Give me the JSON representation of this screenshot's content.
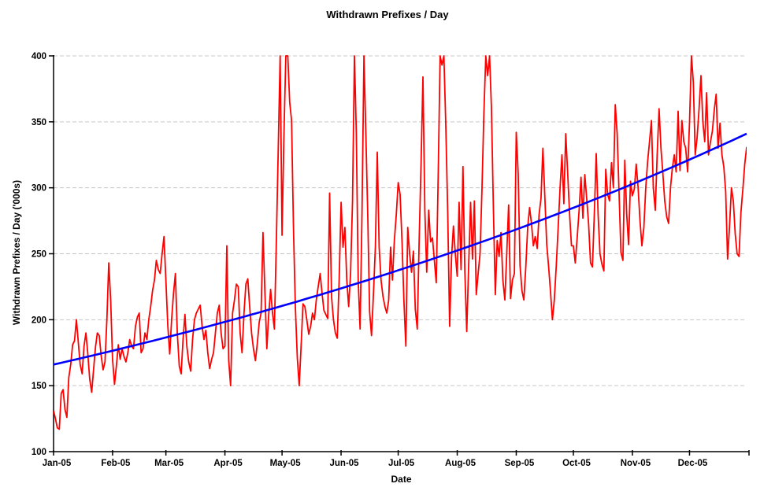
{
  "title": "Withdrawn Prefixes / Day",
  "chart_data": {
    "type": "line",
    "title": "Withdrawn Prefixes / Day",
    "xlabel": "Date",
    "ylabel": "Withdrawn Prefixes / Day ('000s)",
    "ylim": [
      100,
      400
    ],
    "clip_max": 400,
    "grid": "horizontal-dashed",
    "legend": "none",
    "y_ticks": [
      100,
      150,
      200,
      250,
      300,
      350,
      400
    ],
    "y_gridlines": [
      150,
      200,
      250,
      300,
      350,
      400
    ],
    "x_tick_labels": [
      "Jan-05",
      "Feb-05",
      "Mar-05",
      "Apr-05",
      "May-05",
      "Jun-05",
      "Jul-05",
      "Aug-05",
      "Sep-05",
      "Oct-05",
      "Nov-05",
      "Dec-05"
    ],
    "x_tick_days": [
      0,
      31,
      59,
      90,
      120,
      151,
      181,
      212,
      243,
      273,
      304,
      334
    ],
    "x_end_tick_day": 365,
    "x_unit": "day-of-2005",
    "series": [
      {
        "name": "withdrawn-prefixes-daily",
        "color": "#ff0000",
        "values": [
          131,
          125,
          118,
          117,
          144,
          147,
          132,
          126,
          156,
          166,
          181,
          184,
          200,
          183,
          166,
          159,
          180,
          190,
          174,
          155,
          145,
          162,
          179,
          190,
          188,
          173,
          162,
          168,
          200,
          243,
          215,
          170,
          151,
          165,
          181,
          170,
          178,
          172,
          168,
          175,
          185,
          180,
          178,
          195,
          202,
          205,
          175,
          178,
          190,
          185,
          200,
          210,
          222,
          230,
          245,
          238,
          235,
          250,
          263,
          230,
          195,
          174,
          200,
          220,
          235,
          190,
          165,
          159,
          185,
          204,
          180,
          168,
          161,
          185,
          200,
          205,
          208,
          211,
          195,
          185,
          192,
          175,
          163,
          170,
          175,
          190,
          205,
          211,
          190,
          178,
          180,
          256,
          169,
          150,
          205,
          215,
          227,
          225,
          190,
          175,
          205,
          227,
          231,
          210,
          190,
          178,
          169,
          182,
          198,
          205,
          266,
          220,
          178,
          204,
          223,
          205,
          193,
          260,
          330,
          400,
          264,
          340,
          400,
          400,
          365,
          351,
          270,
          210,
          171,
          150,
          180,
          212,
          210,
          200,
          189,
          195,
          205,
          200,
          215,
          225,
          235,
          220,
          207,
          204,
          201,
          296,
          217,
          200,
          190,
          186,
          230,
          289,
          255,
          270,
          230,
          210,
          235,
          290,
          400,
          342,
          230,
          193,
          280,
          400,
          341,
          280,
          206,
          188,
          220,
          255,
          327,
          255,
          230,
          218,
          210,
          205,
          215,
          255,
          230,
          260,
          280,
          304,
          295,
          260,
          215,
          180,
          270,
          250,
          236,
          252,
          208,
          193,
          260,
          318,
          384,
          283,
          236,
          283,
          259,
          262,
          245,
          228,
          310,
          400,
          393,
          400,
          348,
          283,
          195,
          247,
          271,
          250,
          233,
          289,
          238,
          316,
          237,
          191,
          240,
          289,
          246,
          290,
          219,
          235,
          250,
          300,
          357,
          400,
          385,
          400,
          360,
          283,
          219,
          260,
          248,
          266,
          230,
          215,
          250,
          287,
          216,
          230,
          235,
          342,
          311,
          241,
          222,
          215,
          240,
          270,
          285,
          273,
          256,
          263,
          254,
          280,
          292,
          330,
          294,
          257,
          240,
          221,
          200,
          215,
          240,
          270,
          300,
          325,
          288,
          341,
          312,
          280,
          256,
          256,
          243,
          262,
          283,
          308,
          277,
          310,
          292,
          273,
          243,
          240,
          280,
          326,
          280,
          250,
          242,
          237,
          314,
          295,
          290,
          319,
          300,
          363,
          341,
          296,
          251,
          245,
          321,
          280,
          257,
          305,
          294,
          299,
          318,
          300,
          275,
          256,
          270,
          300,
          320,
          335,
          351,
          300,
          283,
          325,
          360,
          330,
          311,
          290,
          278,
          273,
          300,
          315,
          325,
          312,
          358,
          313,
          351,
          335,
          330,
          312,
          350,
          400,
          380,
          325,
          338,
          360,
          385,
          350,
          335,
          372,
          325,
          335,
          343,
          359,
          371,
          330,
          349,
          325,
          316,
          297,
          246,
          270,
          300,
          290,
          265,
          250,
          248,
          281,
          299,
          318,
          331
        ]
      },
      {
        "name": "trend-line",
        "color": "#0000ff",
        "shape": "exponential",
        "start_value": 166,
        "end_value": 341
      }
    ]
  },
  "colors": {
    "background": "#ffffff",
    "daily_series": "#ff0000",
    "trend": "#0000ff",
    "gridline": "#c8c8c8",
    "axis": "#000000",
    "text": "#000000"
  }
}
